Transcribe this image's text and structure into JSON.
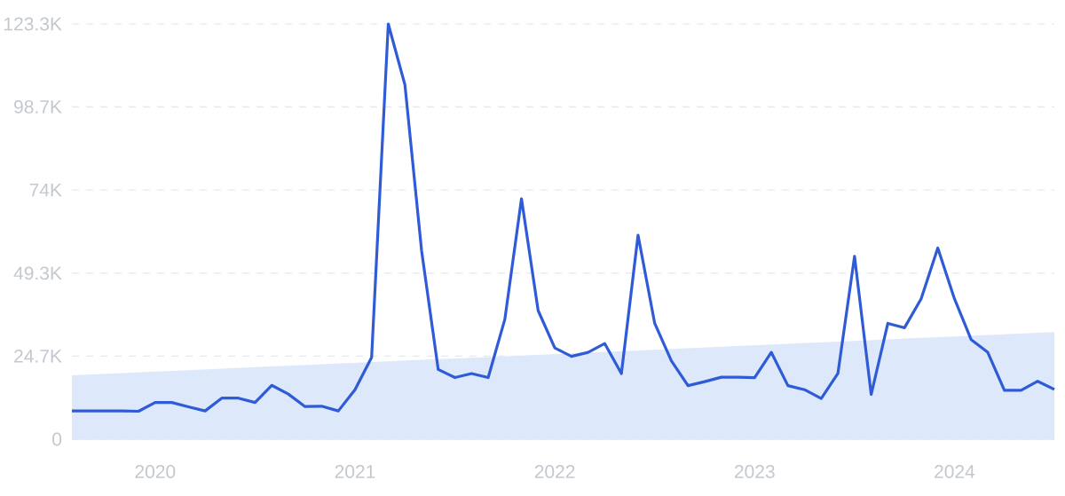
{
  "chart_data": {
    "type": "line",
    "x": [
      "2019-08",
      "2019-09",
      "2019-10",
      "2019-11",
      "2019-12",
      "2020-01",
      "2020-02",
      "2020-03",
      "2020-04",
      "2020-05",
      "2020-06",
      "2020-07",
      "2020-08",
      "2020-09",
      "2020-10",
      "2020-11",
      "2020-12",
      "2021-01",
      "2021-02",
      "2021-03",
      "2021-04",
      "2021-05",
      "2021-06",
      "2021-07",
      "2021-08",
      "2021-09",
      "2021-10",
      "2021-11",
      "2021-12",
      "2022-01",
      "2022-02",
      "2022-03",
      "2022-04",
      "2022-05",
      "2022-06",
      "2022-07",
      "2022-08",
      "2022-09",
      "2022-10",
      "2022-11",
      "2022-12",
      "2023-01",
      "2023-02",
      "2023-03",
      "2023-04",
      "2023-05",
      "2023-06",
      "2023-07",
      "2023-08",
      "2023-09",
      "2023-10",
      "2023-11",
      "2023-12",
      "2024-01",
      "2024-02",
      "2024-03",
      "2024-04",
      "2024-05",
      "2024-06",
      "2024-07"
    ],
    "series": [
      {
        "type": "area",
        "color": "#dde9fb",
        "x": [
          "2019-08",
          "2024-07"
        ],
        "values": [
          19000,
          31800
        ]
      },
      {
        "color": "#2f5bd6",
        "values": [
          8400,
          8400,
          8400,
          8400,
          8300,
          10900,
          10900,
          9600,
          8400,
          12200,
          12200,
          10900,
          16000,
          13400,
          9700,
          9800,
          8400,
          14700,
          24300,
          123300,
          105200,
          56000,
          20700,
          18300,
          19500,
          18300,
          35600,
          71400,
          38200,
          27100,
          24600,
          25800,
          28400,
          19500,
          60600,
          34400,
          23300,
          15900,
          17100,
          18400,
          18400,
          18300,
          25800,
          15900,
          14700,
          12100,
          19500,
          54300,
          13300,
          34400,
          33100,
          41700,
          56800,
          41700,
          29600,
          25800,
          14500,
          14500,
          17200,
          14800
        ]
      }
    ],
    "xlim": [
      "2019-08",
      "2024-07"
    ],
    "xticks": [
      {
        "value": "2020-01",
        "label": "2020"
      },
      {
        "value": "2021-01",
        "label": "2021"
      },
      {
        "value": "2022-01",
        "label": "2022"
      },
      {
        "value": "2023-01",
        "label": "2023"
      },
      {
        "value": "2024-01",
        "label": "2024"
      }
    ],
    "ylim": [
      0,
      123300
    ],
    "yticks": [
      0,
      {
        "value": 24700,
        "label": "24.7K"
      },
      {
        "value": 49300,
        "label": "49.3K"
      },
      {
        "value": 74000,
        "label": "74K"
      },
      {
        "value": 98700,
        "label": "98.7K"
      },
      {
        "value": 123300,
        "label": "123.3K"
      }
    ],
    "grid": "y"
  }
}
